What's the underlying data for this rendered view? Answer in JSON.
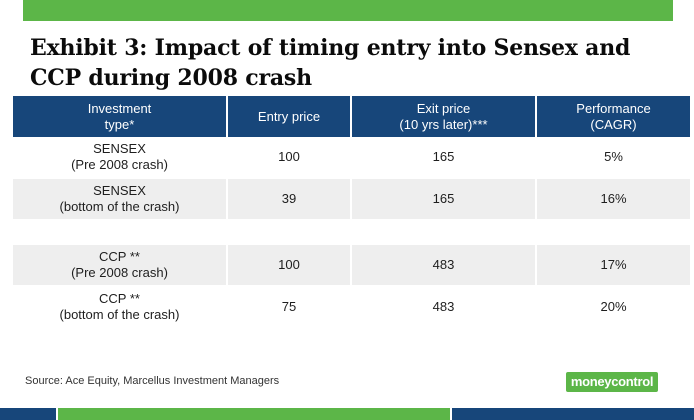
{
  "title": "Exhibit 3: Impact of timing entry into Sensex and CCP during 2008 crash",
  "table": {
    "headers": [
      "Investment\ntype*",
      "Entry price",
      "Exit price\n(10 yrs later)***",
      "Performance\n(CAGR)"
    ],
    "rows": [
      {
        "type": "SENSEX\n(Pre 2008 crash)",
        "entry": "100",
        "exit": "165",
        "cagr": "5%"
      },
      {
        "type": "SENSEX\n(bottom of the crash)",
        "entry": "39",
        "exit": "165",
        "cagr": "16%"
      },
      {
        "type": "CCP **\n(Pre 2008 crash)",
        "entry": "100",
        "exit": "483",
        "cagr": "17%"
      },
      {
        "type": "CCP **\n(bottom of the crash)",
        "entry": "75",
        "exit": "483",
        "cagr": "20%"
      }
    ]
  },
  "source": "Source: Ace Equity, Marcellus Investment Managers",
  "logo_text": "moneycontrol",
  "colors": {
    "header_bg": "#17467a",
    "accent_green": "#5cb648",
    "row_shade": "#eeeeee"
  }
}
